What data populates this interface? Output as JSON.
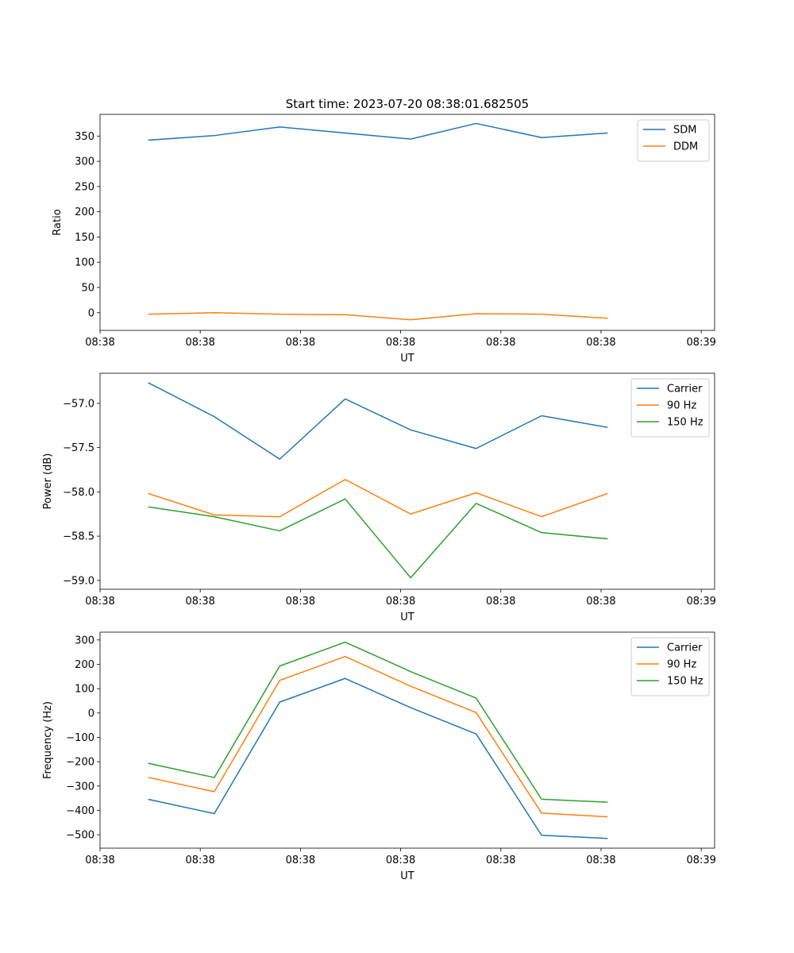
{
  "figure": {
    "title": "Start time: 2023-07-20 08:38:01.682505"
  },
  "chart_data": [
    {
      "type": "line",
      "xlabel": "UT",
      "ylabel": "Ratio",
      "xlim": [
        0,
        9.2
      ],
      "ylim": [
        -35,
        393
      ],
      "x_ticks": [
        0,
        1.5,
        3,
        4.5,
        6,
        7.5,
        9
      ],
      "x_tick_labels": [
        "08:38",
        "08:38",
        "08:38",
        "08:38",
        "08:38",
        "08:38",
        "08:39"
      ],
      "y_ticks": [
        0,
        50,
        100,
        150,
        200,
        250,
        300,
        350
      ],
      "y_tick_labels": [
        "0",
        "50",
        "100",
        "150",
        "200",
        "250",
        "300",
        "350"
      ],
      "x": [
        0.73,
        1.71,
        2.69,
        3.67,
        4.65,
        5.63,
        6.61,
        7.59
      ],
      "legend_position": "top-right",
      "series": [
        {
          "name": "SDM",
          "color": "#1f77b4",
          "values": [
            342,
            351,
            368,
            356,
            344,
            375,
            347,
            356
          ]
        },
        {
          "name": "DDM",
          "color": "#ff7f0e",
          "values": [
            -3,
            0,
            -3,
            -4,
            -14,
            -2,
            -3,
            -11
          ]
        }
      ]
    },
    {
      "type": "line",
      "xlabel": "UT",
      "ylabel": "Power (dB)",
      "xlim": [
        0,
        9.2
      ],
      "ylim": [
        -59.1,
        -56.66
      ],
      "x_ticks": [
        0,
        1.5,
        3,
        4.5,
        6,
        7.5,
        9
      ],
      "x_tick_labels": [
        "08:38",
        "08:38",
        "08:38",
        "08:38",
        "08:38",
        "08:38",
        "08:39"
      ],
      "y_ticks": [
        -59.0,
        -58.5,
        -58.0,
        -57.5,
        -57.0
      ],
      "y_tick_labels": [
        "−59.0",
        "−58.5",
        "−58.0",
        "−57.5",
        "−57.0"
      ],
      "x": [
        0.73,
        1.71,
        2.69,
        3.67,
        4.65,
        5.63,
        6.61,
        7.59
      ],
      "legend_position": "top-right",
      "series": [
        {
          "name": "Carrier",
          "color": "#1f77b4",
          "values": [
            -56.77,
            -57.15,
            -57.63,
            -56.95,
            -57.3,
            -57.51,
            -57.14,
            -57.27
          ]
        },
        {
          "name": "90 Hz",
          "color": "#ff7f0e",
          "values": [
            -58.02,
            -58.26,
            -58.28,
            -57.86,
            -58.25,
            -58.01,
            -58.28,
            -58.02
          ]
        },
        {
          "name": "150 Hz",
          "color": "#2ca02c",
          "values": [
            -58.17,
            -58.28,
            -58.44,
            -58.08,
            -58.97,
            -58.13,
            -58.46,
            -58.53
          ]
        }
      ]
    },
    {
      "type": "line",
      "xlabel": "UT",
      "ylabel": "Frequency (Hz)",
      "xlim": [
        0,
        9.2
      ],
      "ylim": [
        -555,
        332
      ],
      "x_ticks": [
        0,
        1.5,
        3,
        4.5,
        6,
        7.5,
        9
      ],
      "x_tick_labels": [
        "08:38",
        "08:38",
        "08:38",
        "08:38",
        "08:38",
        "08:38",
        "08:39"
      ],
      "y_ticks": [
        -500,
        -400,
        -300,
        -200,
        -100,
        0,
        100,
        200,
        300
      ],
      "y_tick_labels": [
        "−500",
        "−400",
        "−300",
        "−200",
        "−100",
        "0",
        "100",
        "200",
        "300"
      ],
      "x": [
        0.73,
        1.71,
        2.69,
        3.67,
        4.65,
        5.63,
        6.61,
        7.59
      ],
      "legend_position": "top-right",
      "series": [
        {
          "name": "Carrier",
          "color": "#1f77b4",
          "values": [
            -355,
            -413,
            45,
            142,
            22,
            -86,
            -502,
            -515
          ]
        },
        {
          "name": "90 Hz",
          "color": "#ff7f0e",
          "values": [
            -265,
            -323,
            134,
            232,
            110,
            2,
            -411,
            -426
          ]
        },
        {
          "name": "150 Hz",
          "color": "#2ca02c",
          "values": [
            -207,
            -265,
            193,
            291,
            170,
            61,
            -354,
            -366
          ]
        }
      ]
    }
  ]
}
